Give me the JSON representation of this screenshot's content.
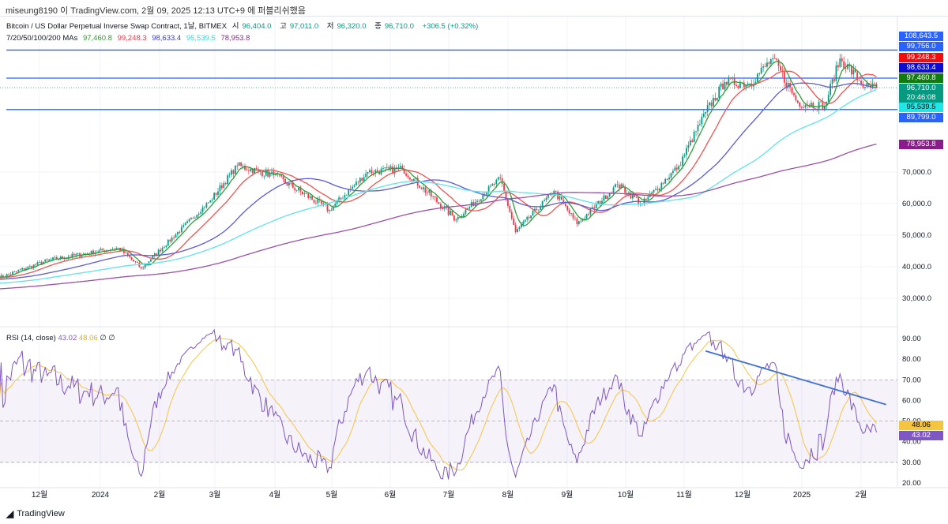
{
  "publish_line": "miseung8190 이 TradingView.com, 2월 09, 2025 12:13 UTC+9 에 퍼블리쉬했음",
  "legend": {
    "symbol": "Bitcoin / US Dollar Perpetual Inverse Swap Contract, 1날, BITMEX",
    "open_label": "시",
    "open": "96,404.0",
    "high_label": "고",
    "high": "97,011.0",
    "low_label": "저",
    "low": "96,320.0",
    "close_label": "종",
    "close": "96,710.0",
    "change": "+306.5 (+0.32%)",
    "ma_label": "7/20/50/100/200 MAs",
    "ma_values": [
      "97,460.8",
      "99,248.3",
      "98,633.4",
      "95,539.5",
      "78,953.8"
    ],
    "rsi_label": "RSI (14, close)",
    "rsi_value": "43.02",
    "rsi_ma": "48.06",
    "rsi_extra": "∅ ∅"
  },
  "colors": {
    "up": "#089981",
    "down": "#f23645",
    "ma7": "#2e9e3a",
    "ma20": "#ef5350",
    "ma50": "#5b5bd6",
    "ma100": "#5fe3ea",
    "ma200": "#9c4fa6",
    "rsi": "#7e57c2",
    "rsi_ma": "#f5c542",
    "hline": "#2962ff",
    "trend": "#3d6fd8"
  },
  "price_tags": [
    {
      "text": "108,643.5",
      "color": "#2962ff"
    },
    {
      "text": "99,756.0",
      "color": "#2962ff"
    },
    {
      "text": "99,248.3",
      "color": "#f20d0d"
    },
    {
      "text": "98,633.4",
      "color": "#0d0dcf"
    },
    {
      "text": "97,460.8",
      "color": "#117a11"
    },
    {
      "text": "96,710.0",
      "color": "#089981"
    },
    {
      "text": "20:46:08",
      "color": "#089981"
    },
    {
      "text": "95,539.5",
      "color": "#22e6e6"
    },
    {
      "text": "89,799.0",
      "color": "#2962ff"
    },
    {
      "text": "78,953.8",
      "color": "#8a1b8a"
    }
  ],
  "rsi_tags": [
    {
      "text": "48.06",
      "color": "#f5c542"
    },
    {
      "text": "43.02",
      "color": "#7e57c2"
    }
  ],
  "footer": "TradingView",
  "chart_data": {
    "type": "candlestick",
    "price_axis": {
      "ticks": [
        "30,000.0",
        "40,000.0",
        "50,000.0",
        "60,000.0",
        "70,000.0"
      ],
      "range": [
        24000,
        110000
      ]
    },
    "rsi_axis": {
      "ticks": [
        "90.00",
        "80.00",
        "70.00",
        "60.00",
        "50.00",
        "40.00",
        "30.00",
        "20.00"
      ],
      "bands": [
        30,
        70
      ]
    },
    "x_ticks": [
      "12월",
      "2024",
      "2월",
      "3월",
      "4월",
      "5월",
      "6월",
      "7월",
      "8월",
      "9월",
      "10월",
      "11월",
      "12월",
      "2025",
      "2월"
    ],
    "horizontal_lines": [
      108643.5,
      99756.0,
      89799.0
    ],
    "close_keypoints": [
      [
        "2023-11-10",
        36500
      ],
      [
        "2023-12-05",
        42000
      ],
      [
        "2024-01-11",
        46000
      ],
      [
        "2024-01-23",
        39500
      ],
      [
        "2024-02-28",
        61000
      ],
      [
        "2024-03-13",
        72000
      ],
      [
        "2024-04-01",
        69000
      ],
      [
        "2024-04-30",
        58000
      ],
      [
        "2024-05-20",
        70000
      ],
      [
        "2024-06-07",
        71000
      ],
      [
        "2024-07-05",
        55000
      ],
      [
        "2024-07-28",
        68000
      ],
      [
        "2024-08-05",
        51000
      ],
      [
        "2024-08-25",
        64000
      ],
      [
        "2024-09-06",
        53500
      ],
      [
        "2024-09-27",
        66000
      ],
      [
        "2024-10-10",
        60000
      ],
      [
        "2024-10-29",
        72000
      ],
      [
        "2024-11-12",
        89000
      ],
      [
        "2024-11-22",
        98500
      ],
      [
        "2024-12-05",
        98000
      ],
      [
        "2024-12-17",
        106000
      ],
      [
        "2024-12-30",
        92000
      ],
      [
        "2025-01-13",
        91000
      ],
      [
        "2025-01-21",
        106000
      ],
      [
        "2025-02-03",
        97000
      ],
      [
        "2025-02-09",
        96710
      ]
    ],
    "trendline_rsi": [
      [
        "2024-11-12",
        84
      ],
      [
        "2025-02-14",
        58
      ]
    ]
  }
}
